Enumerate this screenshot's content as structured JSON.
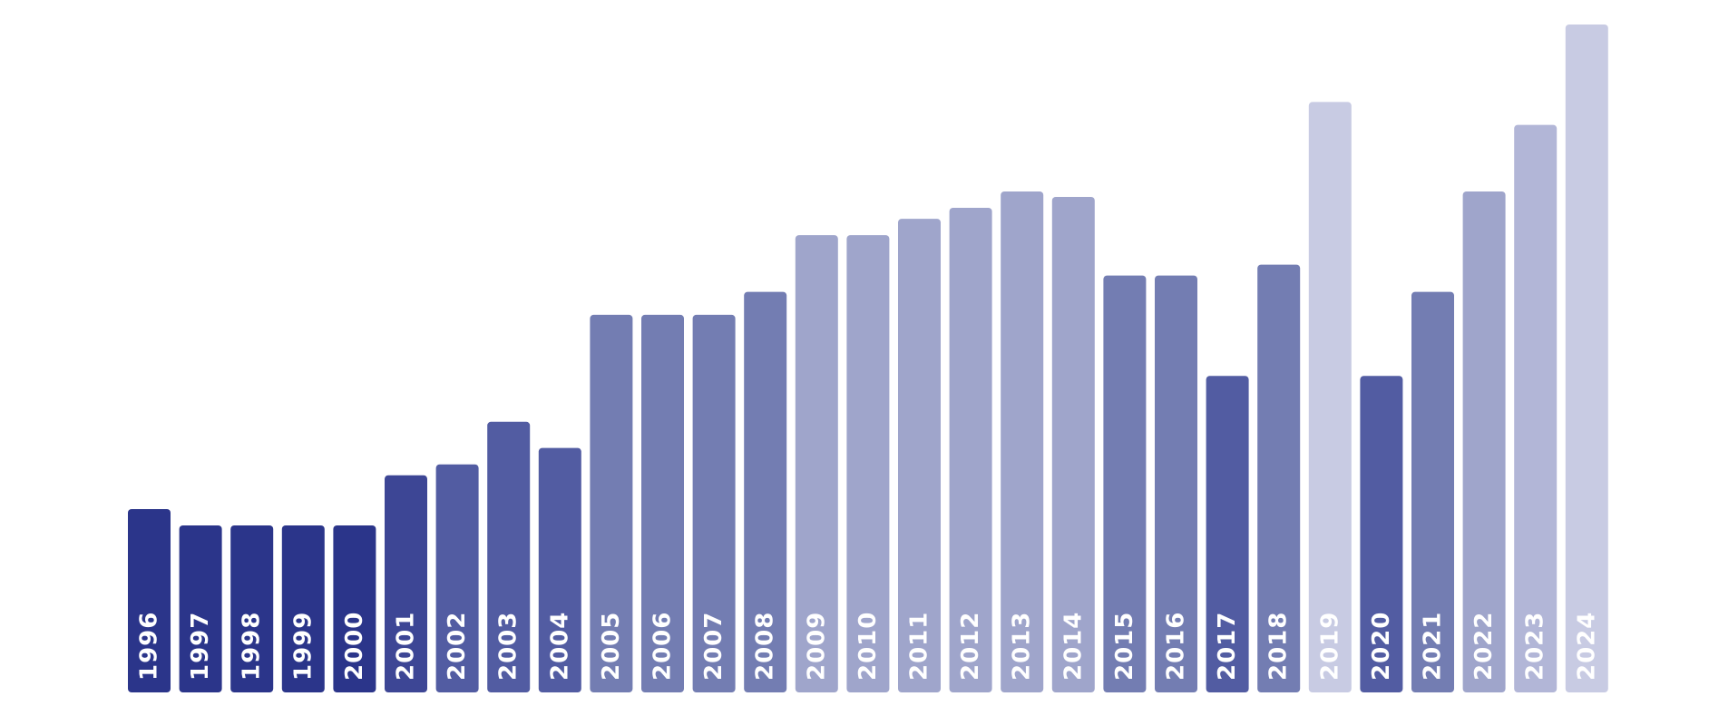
{
  "chart_data": {
    "type": "bar",
    "title": "",
    "xlabel": "",
    "ylabel": "",
    "categories": [
      "1996",
      "1997",
      "1998",
      "1999",
      "2000",
      "2001",
      "2002",
      "2003",
      "2004",
      "2005",
      "2006",
      "2007",
      "2008",
      "2009",
      "2010",
      "2011",
      "2012",
      "2013",
      "2014",
      "2015",
      "2016",
      "2017",
      "2018",
      "2019",
      "2020",
      "2021",
      "2022",
      "2023",
      "2024"
    ],
    "values": [
      168,
      153,
      153,
      153,
      153,
      199,
      209,
      248,
      224,
      346,
      346,
      346,
      367,
      419,
      419,
      434,
      444,
      459,
      454,
      382,
      382,
      290,
      392,
      541,
      290,
      367,
      459,
      520,
      612
    ],
    "ylim": [
      0,
      612
    ],
    "grid": false,
    "colors": {
      "shade_1": "#2b358a",
      "shade_2": "#3d4695",
      "shade_3": "#525ca2",
      "shade_4": "#737db2",
      "shade_5": "#9fa5cb",
      "shade_6": "#b2b6d7",
      "shade_7": "#c8cbe3"
    },
    "bar_shades": [
      "shade_1",
      "shade_1",
      "shade_1",
      "shade_1",
      "shade_1",
      "shade_2",
      "shade_3",
      "shade_3",
      "shade_3",
      "shade_4",
      "shade_4",
      "shade_4",
      "shade_4",
      "shade_5",
      "shade_5",
      "shade_5",
      "shade_5",
      "shade_5",
      "shade_5",
      "shade_4",
      "shade_4",
      "shade_3",
      "shade_4",
      "shade_7",
      "shade_3",
      "shade_4",
      "shade_5",
      "shade_6",
      "shade_7"
    ]
  }
}
